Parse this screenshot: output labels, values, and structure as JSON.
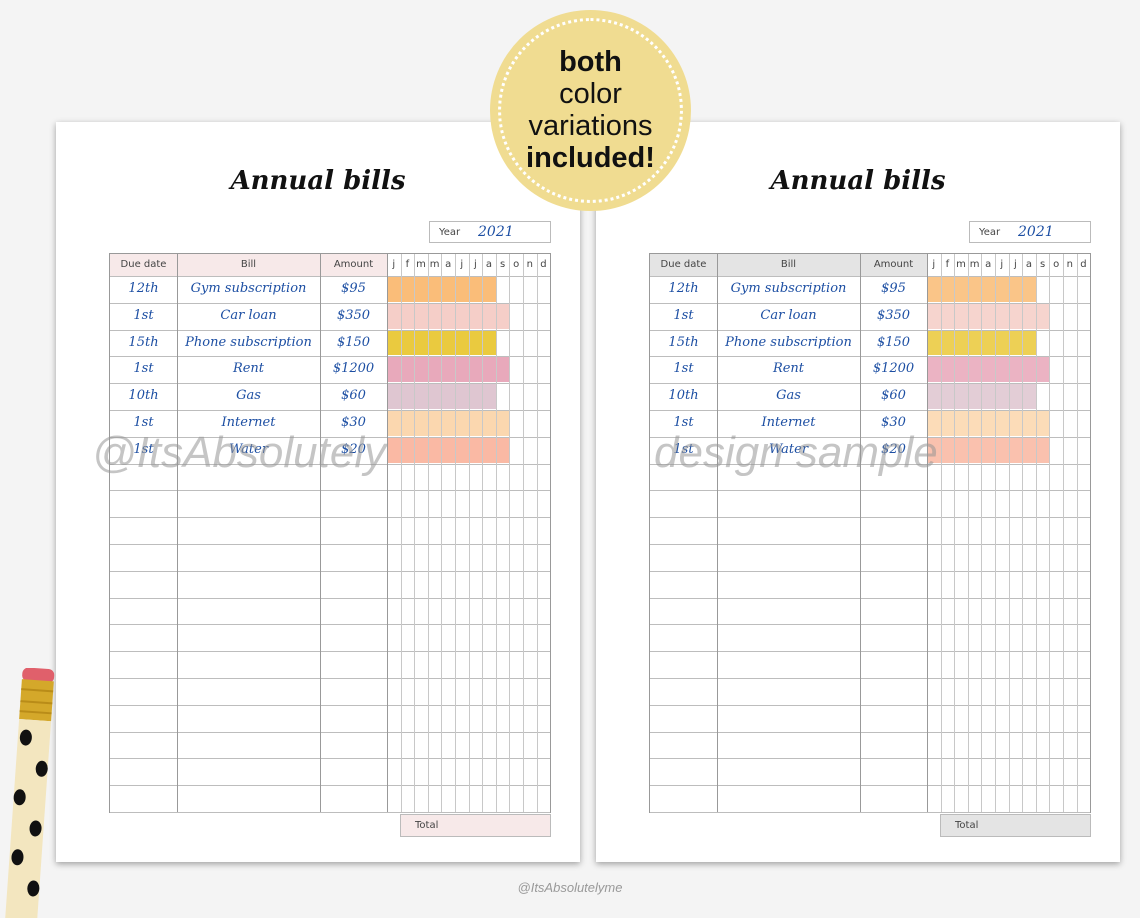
{
  "badge": {
    "line1": "both",
    "line2": "color",
    "line3": "variations",
    "line4": "included!"
  },
  "pages": [
    {
      "variant": "pink",
      "title": "Annual bills",
      "year_label": "Year",
      "year_value": "2021",
      "watermark": "@ItsAbsolutely",
      "header_color": "#f7e9e9",
      "total_label": "Total"
    },
    {
      "variant": "grey",
      "title": "Annual bills",
      "year_label": "Year",
      "year_value": "2021",
      "watermark": "design sample",
      "header_color": "#e4e4e4",
      "total_label": "Total"
    }
  ],
  "columns": {
    "due_date": "Due date",
    "bill": "Bill",
    "amount": "Amount",
    "months": [
      "j",
      "f",
      "m",
      "m",
      "a",
      "j",
      "j",
      "a",
      "s",
      "o",
      "n",
      "d"
    ]
  },
  "bills": [
    {
      "due": "12th",
      "bill": "Gym subscription",
      "amount": "$95",
      "color": "#f9b66a",
      "months_filled": 8
    },
    {
      "due": "1st",
      "bill": "Car loan",
      "amount": "$350",
      "color": "#f4c9c2",
      "months_filled": 9
    },
    {
      "due": "15th",
      "bill": "Phone subscription",
      "amount": "$150",
      "color": "#e8c42a",
      "months_filled": 8
    },
    {
      "due": "1st",
      "bill": "Rent",
      "amount": "$1200",
      "color": "#e6a0b4",
      "months_filled": 9
    },
    {
      "due": "10th",
      "bill": "Gas",
      "amount": "$60",
      "color": "#dcc0cc",
      "months_filled": 8
    },
    {
      "due": "1st",
      "bill": "Internet",
      "amount": "$30",
      "color": "#fbd3a6",
      "months_filled": 9
    },
    {
      "due": "1st",
      "bill": "Water",
      "amount": "$20",
      "color": "#f9b19a",
      "months_filled": 9
    }
  ],
  "empty_rows": 13,
  "footer_credit": "@ItsAbsolutelyme"
}
